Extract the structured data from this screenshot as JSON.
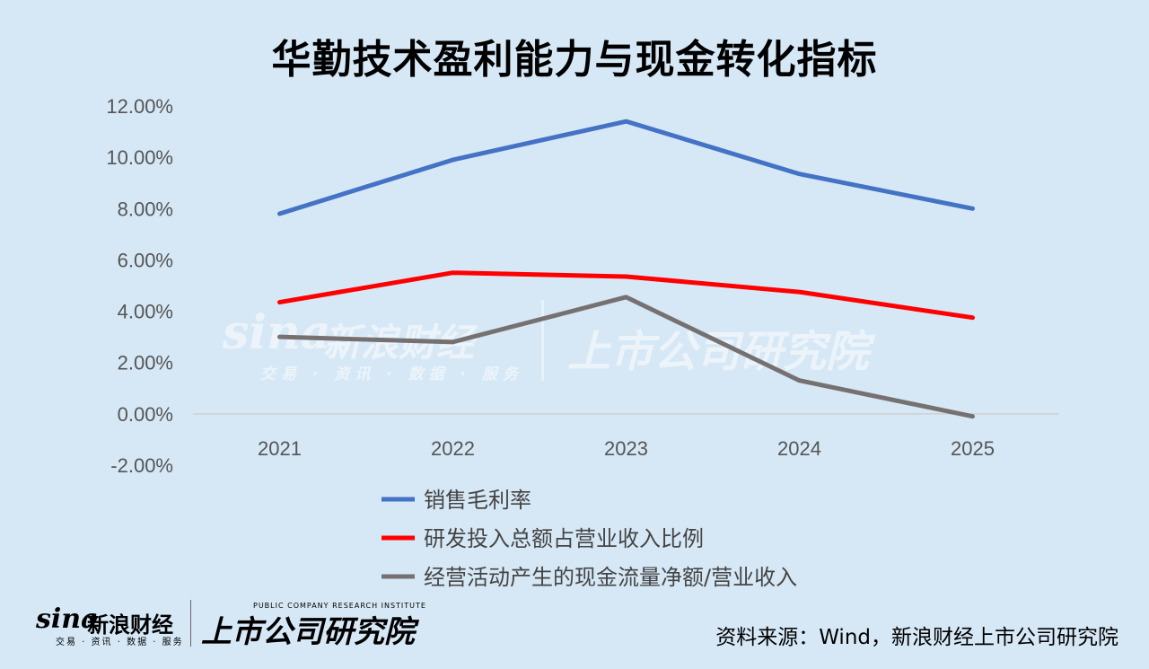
{
  "chart_data": {
    "type": "line",
    "title": "华勤技术盈利能力与现金转化指标",
    "categories": [
      "2021",
      "2022",
      "2023",
      "2024",
      "2025"
    ],
    "ylim": [
      -2,
      12
    ],
    "yticks": [
      "12.00%",
      "10.00%",
      "8.00%",
      "6.00%",
      "4.00%",
      "2.00%",
      "0.00%",
      "-2.00%"
    ],
    "series": [
      {
        "name": "销售毛利率",
        "values": [
          7.8,
          9.9,
          11.4,
          9.35,
          8.0
        ],
        "color": "#4472c4"
      },
      {
        "name": "研发投入总额占营业收入比例",
        "values": [
          4.35,
          5.5,
          5.35,
          4.75,
          3.75
        ],
        "color": "#ff0000"
      },
      {
        "name": "经营活动产生的现金流量净额/营业收入",
        "values": [
          3.0,
          2.8,
          4.55,
          1.3,
          -0.1
        ],
        "color": "#767171"
      }
    ],
    "grid": false,
    "legend_position": "bottom"
  },
  "source_note": "资料来源：Wind，新浪财经上市公司研究院",
  "watermark": {
    "sina": "sina",
    "name": "新浪财经",
    "sub": "交易 · 资讯 · 数据 · 服务",
    "brand": "上市公司研究院"
  },
  "footer_logo": {
    "sina": "sina",
    "name": "新浪财经",
    "sub": "交易 · 资讯 · 数据 · 服务",
    "brand": "上市公司研究院",
    "brand_en": "PUBLIC COMPANY RESEARCH INSTITUTE"
  }
}
